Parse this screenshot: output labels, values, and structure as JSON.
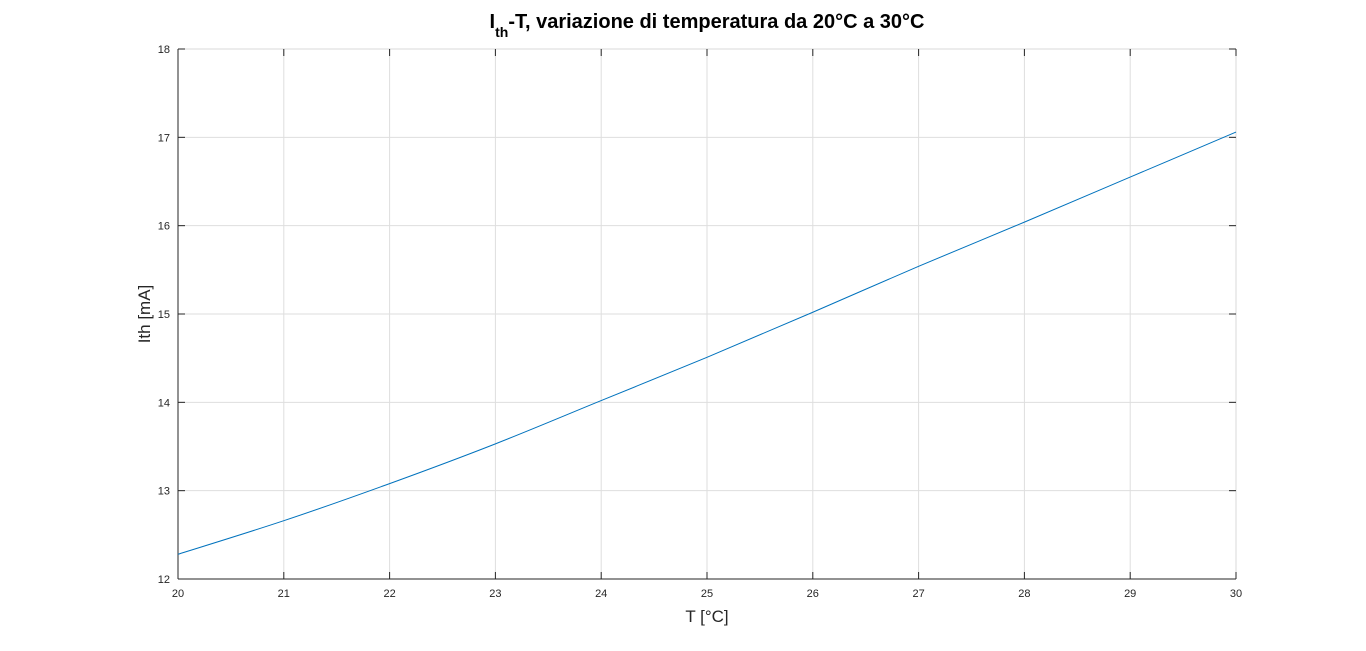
{
  "chart_data": {
    "type": "line",
    "title": {
      "main": "I",
      "subscript": "th",
      "rest": "-T, variazione di temperatura da 20°C a 30°C"
    },
    "xlabel": "T [°C]",
    "ylabel": "Ith [mA]",
    "xlim": [
      20,
      30
    ],
    "ylim": [
      12,
      18
    ],
    "xticks": [
      20,
      21,
      22,
      23,
      24,
      25,
      26,
      27,
      28,
      29,
      30
    ],
    "xtick_labels": [
      "20",
      "21",
      "22",
      "23",
      "24",
      "25",
      "26",
      "27",
      "28",
      "29",
      "30"
    ],
    "yticks": [
      12,
      13,
      14,
      15,
      16,
      17,
      18
    ],
    "ytick_labels": [
      "12",
      "13",
      "14",
      "15",
      "16",
      "17",
      "18"
    ],
    "grid": true,
    "series": [
      {
        "color": "#0072bd",
        "x": [
          20,
          21,
          22,
          23,
          24,
          25,
          26,
          27,
          28,
          29,
          30
        ],
        "y": [
          12.28,
          12.66,
          13.08,
          13.53,
          14.02,
          14.51,
          15.02,
          15.54,
          16.04,
          16.55,
          17.06
        ]
      }
    ]
  }
}
